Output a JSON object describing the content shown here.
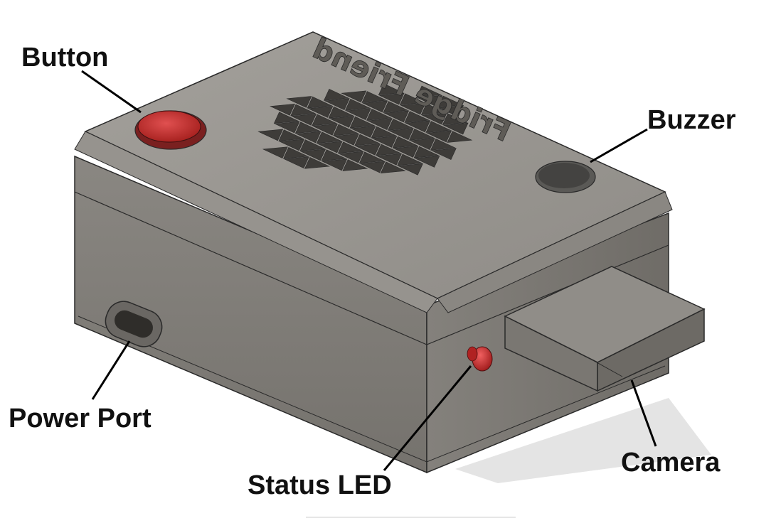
{
  "labels": {
    "button": "Button",
    "buzzer": "Buzzer",
    "power_port": "Power Port",
    "status_led": "Status LED",
    "camera": "Camera"
  },
  "engraving": "Fridge Friend",
  "colors": {
    "body": "#8d8a85",
    "body_top": "#9d9a95",
    "body_dark": "#6e6b66",
    "button": "#c8302e",
    "led": "#c92a2a",
    "buzzer": "#4a4a48"
  }
}
